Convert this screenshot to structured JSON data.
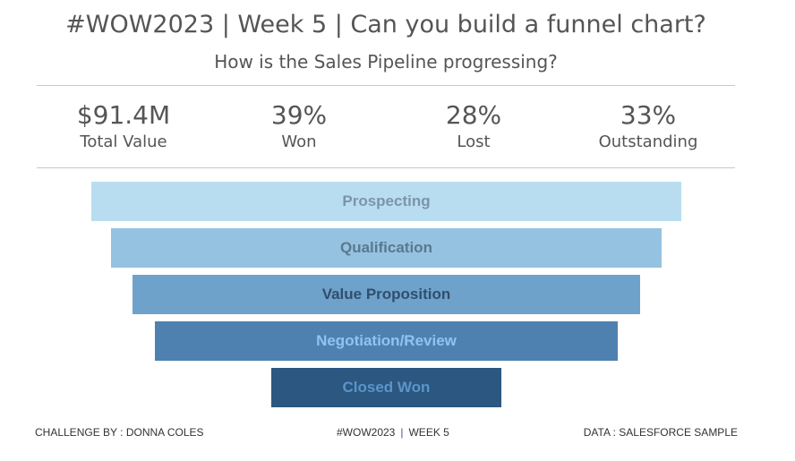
{
  "header": {
    "title": "#WOW2023 | Week 5 | Can you build a funnel chart?",
    "subtitle": "How is the Sales Pipeline progressing?"
  },
  "kpis": [
    {
      "value": "$91.4M",
      "label": "Total Value"
    },
    {
      "value": "39%",
      "label": "Won"
    },
    {
      "value": "28%",
      "label": "Lost"
    },
    {
      "value": "33%",
      "label": "Outstanding"
    }
  ],
  "chart_data": {
    "type": "bar",
    "orientation": "horizontal-centered-funnel",
    "categories": [
      "Prospecting",
      "Qualification",
      "Value Proposition",
      "Negotiation/Review",
      "Closed Won"
    ],
    "relative_values": [
      1.0,
      0.933,
      0.86,
      0.785,
      0.39
    ],
    "colors": [
      "#b9ddf0",
      "#95c2e0",
      "#6fa2ca",
      "#4f81b0",
      "#2b5780"
    ],
    "label_colors": [
      "#7b95a8",
      "#5a7890",
      "#2f4e6e",
      "#8fc3f2",
      "#5b94cc"
    ]
  },
  "footer": {
    "left": "CHALLENGE BY : DONNA COLES",
    "center_a": "#WOW2023",
    "center_sep": "|",
    "center_b": "WEEK 5",
    "right": "DATA : SALESFORCE SAMPLE"
  }
}
